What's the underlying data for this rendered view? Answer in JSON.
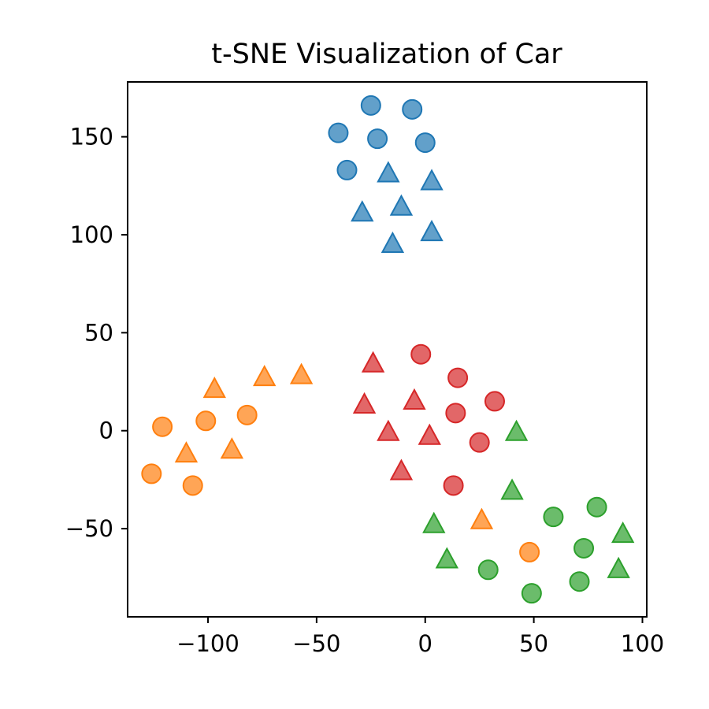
{
  "chart_data": {
    "type": "scatter",
    "title": "t-SNE Visualization of Car",
    "xlabel": "",
    "ylabel": "",
    "xlim": [
      -137,
      102
    ],
    "ylim": [
      -95,
      178
    ],
    "xticks": [
      -100,
      -50,
      0,
      50,
      100
    ],
    "xtick_labels": [
      "−100",
      "−50",
      "0",
      "50",
      "100"
    ],
    "yticks": [
      -50,
      0,
      50,
      100,
      150
    ],
    "ytick_labels": [
      "−50",
      "0",
      "50",
      "100",
      "150"
    ],
    "grid": false,
    "legend": false,
    "series": [
      {
        "color": "#1f77b4",
        "marker": "circle",
        "points": [
          [
            -25,
            166
          ],
          [
            -6,
            164
          ],
          [
            -40,
            152
          ],
          [
            -22,
            149
          ],
          [
            0,
            147
          ],
          [
            -36,
            133
          ]
        ]
      },
      {
        "color": "#1f77b4",
        "marker": "triangle",
        "points": [
          [
            -17,
            131
          ],
          [
            3,
            127
          ],
          [
            -29,
            111
          ],
          [
            -11,
            114
          ],
          [
            3,
            101
          ],
          [
            -15,
            95
          ]
        ]
      },
      {
        "color": "#ff7f0e",
        "marker": "circle",
        "points": [
          [
            -121,
            2
          ],
          [
            -101,
            5
          ],
          [
            -82,
            8
          ],
          [
            -126,
            -22
          ],
          [
            -107,
            -28
          ],
          [
            48,
            -62
          ]
        ]
      },
      {
        "color": "#ff7f0e",
        "marker": "triangle",
        "points": [
          [
            -97,
            21
          ],
          [
            -74,
            27
          ],
          [
            -57,
            28
          ],
          [
            -110,
            -12
          ],
          [
            -89,
            -10
          ],
          [
            26,
            -46
          ]
        ]
      },
      {
        "color": "#d62728",
        "marker": "circle",
        "points": [
          [
            -2,
            39
          ],
          [
            15,
            27
          ],
          [
            32,
            15
          ],
          [
            14,
            9
          ],
          [
            25,
            -6
          ],
          [
            13,
            -28
          ]
        ]
      },
      {
        "color": "#d62728",
        "marker": "triangle",
        "points": [
          [
            -24,
            34
          ],
          [
            -28,
            13
          ],
          [
            -5,
            15
          ],
          [
            -17,
            -1
          ],
          [
            2,
            -3
          ],
          [
            -11,
            -21
          ]
        ]
      },
      {
        "color": "#2ca02c",
        "marker": "circle",
        "points": [
          [
            59,
            -44
          ],
          [
            79,
            -39
          ],
          [
            73,
            -60
          ],
          [
            29,
            -71
          ],
          [
            71,
            -77
          ],
          [
            49,
            -83
          ]
        ]
      },
      {
        "color": "#2ca02c",
        "marker": "triangle",
        "points": [
          [
            42,
            -1
          ],
          [
            40,
            -31
          ],
          [
            4,
            -48
          ],
          [
            91,
            -53
          ],
          [
            10,
            -66
          ],
          [
            89,
            -71
          ]
        ]
      }
    ]
  }
}
